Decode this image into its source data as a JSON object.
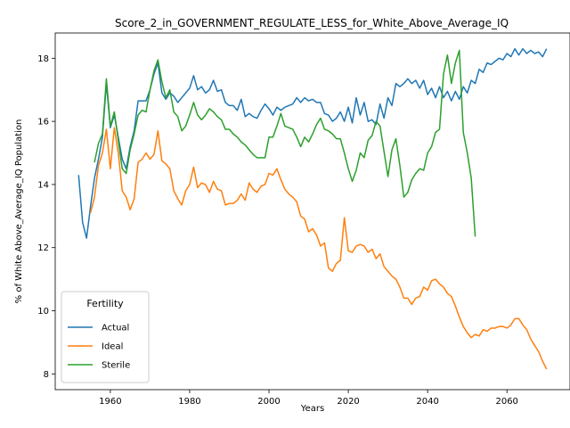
{
  "chart_data": {
    "type": "line",
    "title": "Score_2_in_GOVERNMENT_REGULATE_LESS_for_White_Above_Average_IQ",
    "xlabel": "Years",
    "ylabel": "% of White Above_Average_IQ Population",
    "xlim": [
      1946.1,
      2075.9
    ],
    "ylim": [
      7.5,
      18.8
    ],
    "xticks": [
      1960,
      1980,
      2000,
      2020,
      2040,
      2060
    ],
    "yticks": [
      8,
      10,
      12,
      14,
      16,
      18
    ],
    "grid": false,
    "legend": {
      "title": "Fertility",
      "placement": "lower-left"
    },
    "series": [
      {
        "name": "Actual",
        "color": "#1f77b4",
        "x": [
          1952,
          1953,
          1954,
          1955,
          1956,
          1957,
          1958,
          1959,
          1960,
          1961,
          1962,
          1963,
          1964,
          1965,
          1966,
          1967,
          1968,
          1969,
          1970,
          1971,
          1972,
          1973,
          1974,
          1975,
          1976,
          1977,
          1978,
          1979,
          1980,
          1981,
          1982,
          1983,
          1984,
          1985,
          1986,
          1987,
          1988,
          1989,
          1990,
          1991,
          1992,
          1993,
          1994,
          1995,
          1996,
          1997,
          1998,
          1999,
          2000,
          2001,
          2002,
          2003,
          2004,
          2005,
          2006,
          2007,
          2008,
          2009,
          2010,
          2011,
          2012,
          2013,
          2014,
          2015,
          2016,
          2017,
          2018,
          2019,
          2020,
          2021,
          2022,
          2023,
          2024,
          2025,
          2026,
          2027,
          2028,
          2029,
          2030,
          2031,
          2032,
          2033,
          2034,
          2035,
          2036,
          2037,
          2038,
          2039,
          2040,
          2041,
          2042,
          2043,
          2044,
          2045,
          2046,
          2047,
          2048,
          2049,
          2050,
          2051,
          2052,
          2053,
          2054,
          2055,
          2056,
          2057,
          2058,
          2059,
          2060,
          2061,
          2062,
          2063,
          2064,
          2065,
          2066,
          2067,
          2068,
          2069,
          2070
        ],
        "values": [
          14.3,
          12.8,
          12.3,
          13.3,
          14.2,
          14.8,
          15.5,
          17.2,
          15.8,
          16.2,
          15.5,
          14.8,
          14.5,
          15.2,
          15.7,
          16.65,
          16.65,
          16.65,
          17.0,
          17.5,
          17.85,
          16.9,
          16.7,
          16.9,
          16.8,
          16.6,
          16.75,
          16.9,
          17.05,
          17.45,
          17.0,
          17.1,
          16.9,
          17.0,
          17.3,
          16.95,
          17.0,
          16.6,
          16.5,
          16.5,
          16.35,
          16.7,
          16.15,
          16.25,
          16.15,
          16.1,
          16.35,
          16.55,
          16.4,
          16.2,
          16.45,
          16.35,
          16.45,
          16.5,
          16.55,
          16.75,
          16.6,
          16.75,
          16.65,
          16.7,
          16.6,
          16.6,
          16.25,
          16.2,
          16.0,
          16.1,
          16.3,
          16.0,
          16.45,
          15.95,
          16.75,
          16.2,
          16.6,
          16.0,
          16.05,
          15.9,
          16.55,
          16.1,
          16.75,
          16.5,
          17.2,
          17.1,
          17.2,
          17.35,
          17.2,
          17.3,
          17.05,
          17.3,
          16.85,
          17.05,
          16.75,
          17.1,
          16.75,
          16.95,
          16.65,
          16.95,
          16.7,
          17.1,
          16.9,
          17.3,
          17.2,
          17.65,
          17.55,
          17.85,
          17.8,
          17.9,
          18.0,
          17.95,
          18.15,
          18.05,
          18.3,
          18.1,
          18.3,
          18.15,
          18.25,
          18.15,
          18.2,
          18.05,
          18.3
        ]
      },
      {
        "name": "Ideal",
        "color": "#ff7f0e",
        "x": [
          1955,
          1956,
          1957,
          1958,
          1959,
          1960,
          1961,
          1962,
          1963,
          1964,
          1965,
          1966,
          1967,
          1968,
          1969,
          1970,
          1971,
          1972,
          1973,
          1974,
          1975,
          1976,
          1977,
          1978,
          1979,
          1980,
          1981,
          1982,
          1983,
          1984,
          1985,
          1986,
          1987,
          1988,
          1989,
          1990,
          1991,
          1992,
          1993,
          1994,
          1995,
          1996,
          1997,
          1998,
          1999,
          2000,
          2001,
          2002,
          2003,
          2004,
          2005,
          2006,
          2007,
          2008,
          2009,
          2010,
          2011,
          2012,
          2013,
          2014,
          2015,
          2016,
          2017,
          2018,
          2019,
          2020,
          2021,
          2022,
          2023,
          2024,
          2025,
          2026,
          2027,
          2028,
          2029,
          2030,
          2031,
          2032,
          2033,
          2034,
          2035,
          2036,
          2037,
          2038,
          2039,
          2040,
          2041,
          2042,
          2043,
          2044,
          2045,
          2046,
          2047,
          2048,
          2049,
          2050,
          2051,
          2052,
          2053,
          2054,
          2055,
          2056,
          2057,
          2058,
          2059,
          2060,
          2061,
          2062,
          2063,
          2064,
          2065,
          2066,
          2067,
          2068,
          2069,
          2070
        ],
        "values": [
          13.1,
          13.6,
          14.6,
          15.0,
          15.75,
          14.5,
          15.8,
          15.0,
          13.8,
          13.6,
          13.2,
          13.55,
          14.7,
          14.8,
          15.0,
          14.8,
          14.95,
          15.7,
          14.75,
          14.65,
          14.5,
          13.8,
          13.55,
          13.35,
          13.8,
          14.0,
          14.55,
          13.9,
          14.05,
          14.0,
          13.75,
          14.1,
          13.85,
          13.8,
          13.35,
          13.4,
          13.4,
          13.5,
          13.7,
          13.5,
          14.05,
          13.85,
          13.75,
          13.95,
          14.0,
          14.35,
          14.3,
          14.5,
          14.15,
          13.85,
          13.7,
          13.6,
          13.45,
          13.0,
          12.9,
          12.5,
          12.6,
          12.4,
          12.05,
          12.15,
          11.35,
          11.25,
          11.5,
          11.6,
          12.95,
          11.9,
          11.85,
          12.05,
          12.1,
          12.05,
          11.85,
          11.95,
          11.65,
          11.8,
          11.4,
          11.25,
          11.1,
          11.0,
          10.75,
          10.4,
          10.4,
          10.2,
          10.4,
          10.45,
          10.75,
          10.65,
          10.95,
          11.0,
          10.85,
          10.75,
          10.55,
          10.45,
          10.15,
          9.8,
          9.5,
          9.3,
          9.15,
          9.25,
          9.2,
          9.4,
          9.35,
          9.45,
          9.45,
          9.5,
          9.5,
          9.45,
          9.55,
          9.75,
          9.75,
          9.55,
          9.4,
          9.1,
          8.9,
          8.7,
          8.4,
          8.15
        ]
      },
      {
        "name": "Sterile",
        "color": "#2ca02c",
        "x": [
          1956,
          1957,
          1958,
          1959,
          1960,
          1961,
          1962,
          1963,
          1964,
          1965,
          1966,
          1967,
          1968,
          1969,
          1970,
          1971,
          1972,
          1973,
          1974,
          1975,
          1976,
          1977,
          1978,
          1979,
          1980,
          1981,
          1982,
          1983,
          1984,
          1985,
          1986,
          1987,
          1988,
          1989,
          1990,
          1991,
          1992,
          1993,
          1994,
          1995,
          1996,
          1997,
          1998,
          1999,
          2000,
          2001,
          2002,
          2003,
          2004,
          2005,
          2006,
          2007,
          2008,
          2009,
          2010,
          2011,
          2012,
          2013,
          2014,
          2015,
          2016,
          2017,
          2018,
          2019,
          2020,
          2021,
          2022,
          2023,
          2024,
          2025,
          2026,
          2027,
          2028,
          2029,
          2030,
          2031,
          2032,
          2033,
          2034,
          2035,
          2036,
          2037,
          2038,
          2039,
          2040,
          2041,
          2042,
          2043,
          2044,
          2045,
          2046,
          2047,
          2048,
          2049,
          2050,
          2051,
          2052
        ],
        "values": [
          14.7,
          15.3,
          15.6,
          17.35,
          15.85,
          16.3,
          15.4,
          14.5,
          14.35,
          15.1,
          15.6,
          16.2,
          16.35,
          16.3,
          17.0,
          17.6,
          17.95,
          17.25,
          16.75,
          17.0,
          16.3,
          16.15,
          15.7,
          15.85,
          16.2,
          16.6,
          16.2,
          16.05,
          16.2,
          16.4,
          16.3,
          16.15,
          16.05,
          15.75,
          15.75,
          15.6,
          15.5,
          15.35,
          15.25,
          15.1,
          14.95,
          14.85,
          14.85,
          14.85,
          15.5,
          15.5,
          15.85,
          16.25,
          15.85,
          15.8,
          15.75,
          15.5,
          15.2,
          15.5,
          15.35,
          15.6,
          15.9,
          16.1,
          15.75,
          15.7,
          15.6,
          15.45,
          15.45,
          15.0,
          14.5,
          14.1,
          14.45,
          15.0,
          14.85,
          15.4,
          15.55,
          16.0,
          15.85,
          15.05,
          14.25,
          15.1,
          15.45,
          14.6,
          13.6,
          13.75,
          14.15,
          14.35,
          14.5,
          14.45,
          15.0,
          15.2,
          15.65,
          15.75,
          17.5,
          18.1,
          17.2,
          17.85,
          18.25,
          15.65,
          15.0,
          14.2,
          12.35
        ]
      }
    ]
  }
}
